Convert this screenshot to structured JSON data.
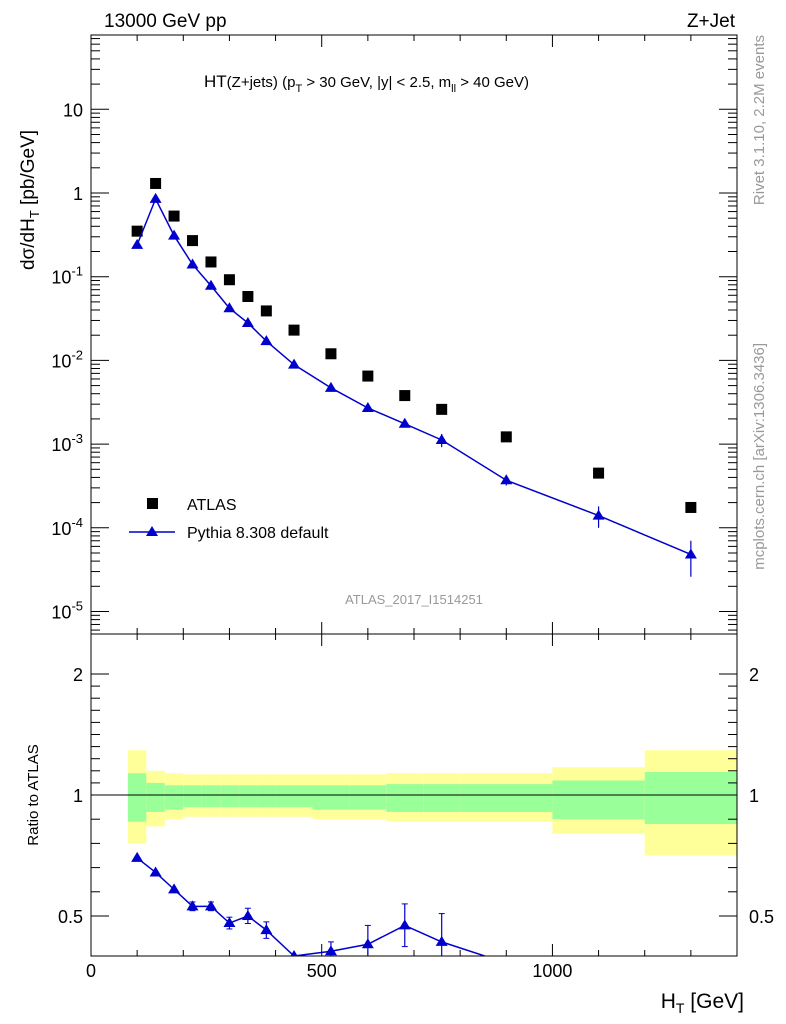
{
  "header": {
    "left": "13000 GeV pp",
    "right": "Z+Jet"
  },
  "side": {
    "rivet": "Rivet 3.1.10,  2.2M events",
    "mcplots": "mcplots.cern.ch [arXiv:1306.3436]"
  },
  "chart_data": [
    {
      "type": "scatter",
      "title": "HT(Z+jets) (p_T > 30 GeV, |y| < 2.5, m_ll > 40 GeV)",
      "ylabel": "dσ/dH_T [pb/GeV]",
      "xlabel": "H_T [GeV]",
      "yscale": "log",
      "xlim": [
        0,
        1400
      ],
      "ylim": [
        5e-06,
        80
      ],
      "watermark": "ATLAS_2017_I1514251",
      "y_tick_labels": [
        "10^-5",
        "10^-4",
        "10^-3",
        "10^-2",
        "10^-1",
        "1",
        "10"
      ],
      "legend": {
        "placement": "lower-left",
        "entries": [
          "ATLAS",
          "Pythia 8.308 default"
        ]
      },
      "series": [
        {
          "name": "ATLAS",
          "marker": "square",
          "color": "#000000",
          "x": [
            100,
            140,
            180,
            220,
            260,
            300,
            340,
            380,
            440,
            520,
            600,
            680,
            760,
            900,
            1100,
            1300
          ],
          "y": [
            0.35,
            1.3,
            0.53,
            0.27,
            0.15,
            0.092,
            0.058,
            0.039,
            0.023,
            0.012,
            0.0065,
            0.0038,
            0.0026,
            0.00122,
            0.00045,
            0.000175
          ]
        },
        {
          "name": "Pythia 8.308 default",
          "marker": "triangle",
          "color": "#0000cc",
          "x": [
            100,
            140,
            180,
            220,
            260,
            300,
            340,
            380,
            440,
            520,
            600,
            680,
            760,
            900,
            1100,
            1300
          ],
          "y": [
            0.24,
            0.85,
            0.31,
            0.14,
            0.078,
            0.042,
            0.028,
            0.017,
            0.0089,
            0.0047,
            0.0027,
            0.00175,
            0.00112,
            0.00037,
            0.00014,
            4.8e-05
          ],
          "yerr": [
            0,
            0,
            0,
            0,
            0,
            0,
            0,
            0,
            0,
            0,
            0,
            0.00012,
            0.0002,
            5e-05,
            4e-05,
            2.2e-05
          ]
        }
      ]
    },
    {
      "type": "line",
      "ylabel": "Ratio to ATLAS",
      "xlabel": "H_T [GeV]",
      "xlim": [
        0,
        1400
      ],
      "ylim": [
        0.33,
        2.5
      ],
      "x_tick_labels": [
        "0",
        "500",
        "1000"
      ],
      "y_tick_labels": [
        "0.5",
        "1",
        "2"
      ],
      "bands": {
        "edges": [
          80,
          120,
          160,
          200,
          240,
          280,
          320,
          360,
          400,
          480,
          560,
          640,
          720,
          800,
          1000,
          1200,
          1400
        ],
        "yellow_up": [
          1.37,
          1.2,
          1.18,
          1.17,
          1.17,
          1.17,
          1.17,
          1.17,
          1.17,
          1.17,
          1.17,
          1.18,
          1.18,
          1.18,
          1.23,
          1.37
        ],
        "yellow_dn": [
          0.8,
          0.87,
          0.9,
          0.91,
          0.91,
          0.91,
          0.91,
          0.91,
          0.91,
          0.9,
          0.9,
          0.89,
          0.89,
          0.89,
          0.84,
          0.75
        ],
        "green_up": [
          1.18,
          1.1,
          1.08,
          1.08,
          1.08,
          1.08,
          1.08,
          1.08,
          1.08,
          1.08,
          1.08,
          1.09,
          1.09,
          1.09,
          1.12,
          1.19
        ],
        "green_dn": [
          0.89,
          0.93,
          0.94,
          0.95,
          0.95,
          0.95,
          0.95,
          0.95,
          0.95,
          0.94,
          0.94,
          0.93,
          0.93,
          0.93,
          0.9,
          0.88
        ]
      },
      "series": [
        {
          "name": "Pythia 8.308 default",
          "color": "#0000cc",
          "x": [
            100,
            140,
            180,
            220,
            260,
            300,
            340,
            380,
            440,
            520,
            600,
            680,
            760,
            900
          ],
          "y": [
            0.74,
            0.68,
            0.61,
            0.54,
            0.54,
            0.47,
            0.5,
            0.44,
            0.33,
            0.35,
            0.38,
            0.46,
            0.39,
            0.3
          ],
          "yerr": [
            0,
            0,
            0,
            0.018,
            0.018,
            0.025,
            0.032,
            0.035,
            0,
            0.04,
            0.08,
            0.09,
            0.12,
            0
          ]
        }
      ]
    }
  ],
  "colors": {
    "yellow_band": "#ffff99",
    "green_band": "#99ff99",
    "mc": "#0000cc",
    "data": "#000000"
  }
}
